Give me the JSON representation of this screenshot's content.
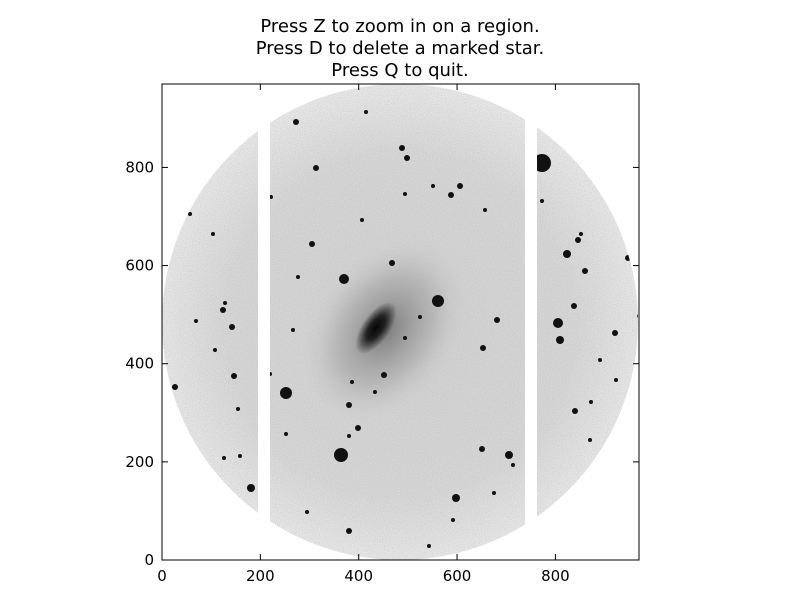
{
  "title": {
    "lines": [
      "Press Z to zoom in on a region.",
      "Press D to delete a marked star.",
      "Press Q to quit."
    ]
  },
  "plot": {
    "x_ticks": [
      "0",
      "200",
      "400",
      "600",
      "800"
    ],
    "y_ticks": [
      "0",
      "200",
      "400",
      "600",
      "800"
    ],
    "x_range": [
      0,
      970
    ],
    "y_range": [
      0,
      970
    ],
    "image_description_type": "inverted grayscale astronomical image of a spiral galaxy with field stars inside a circular aperture; two vertical white chip gaps"
  },
  "colors": {
    "background": "#ffffff",
    "sky": "#e0e0e0",
    "stars": "#111111"
  }
}
